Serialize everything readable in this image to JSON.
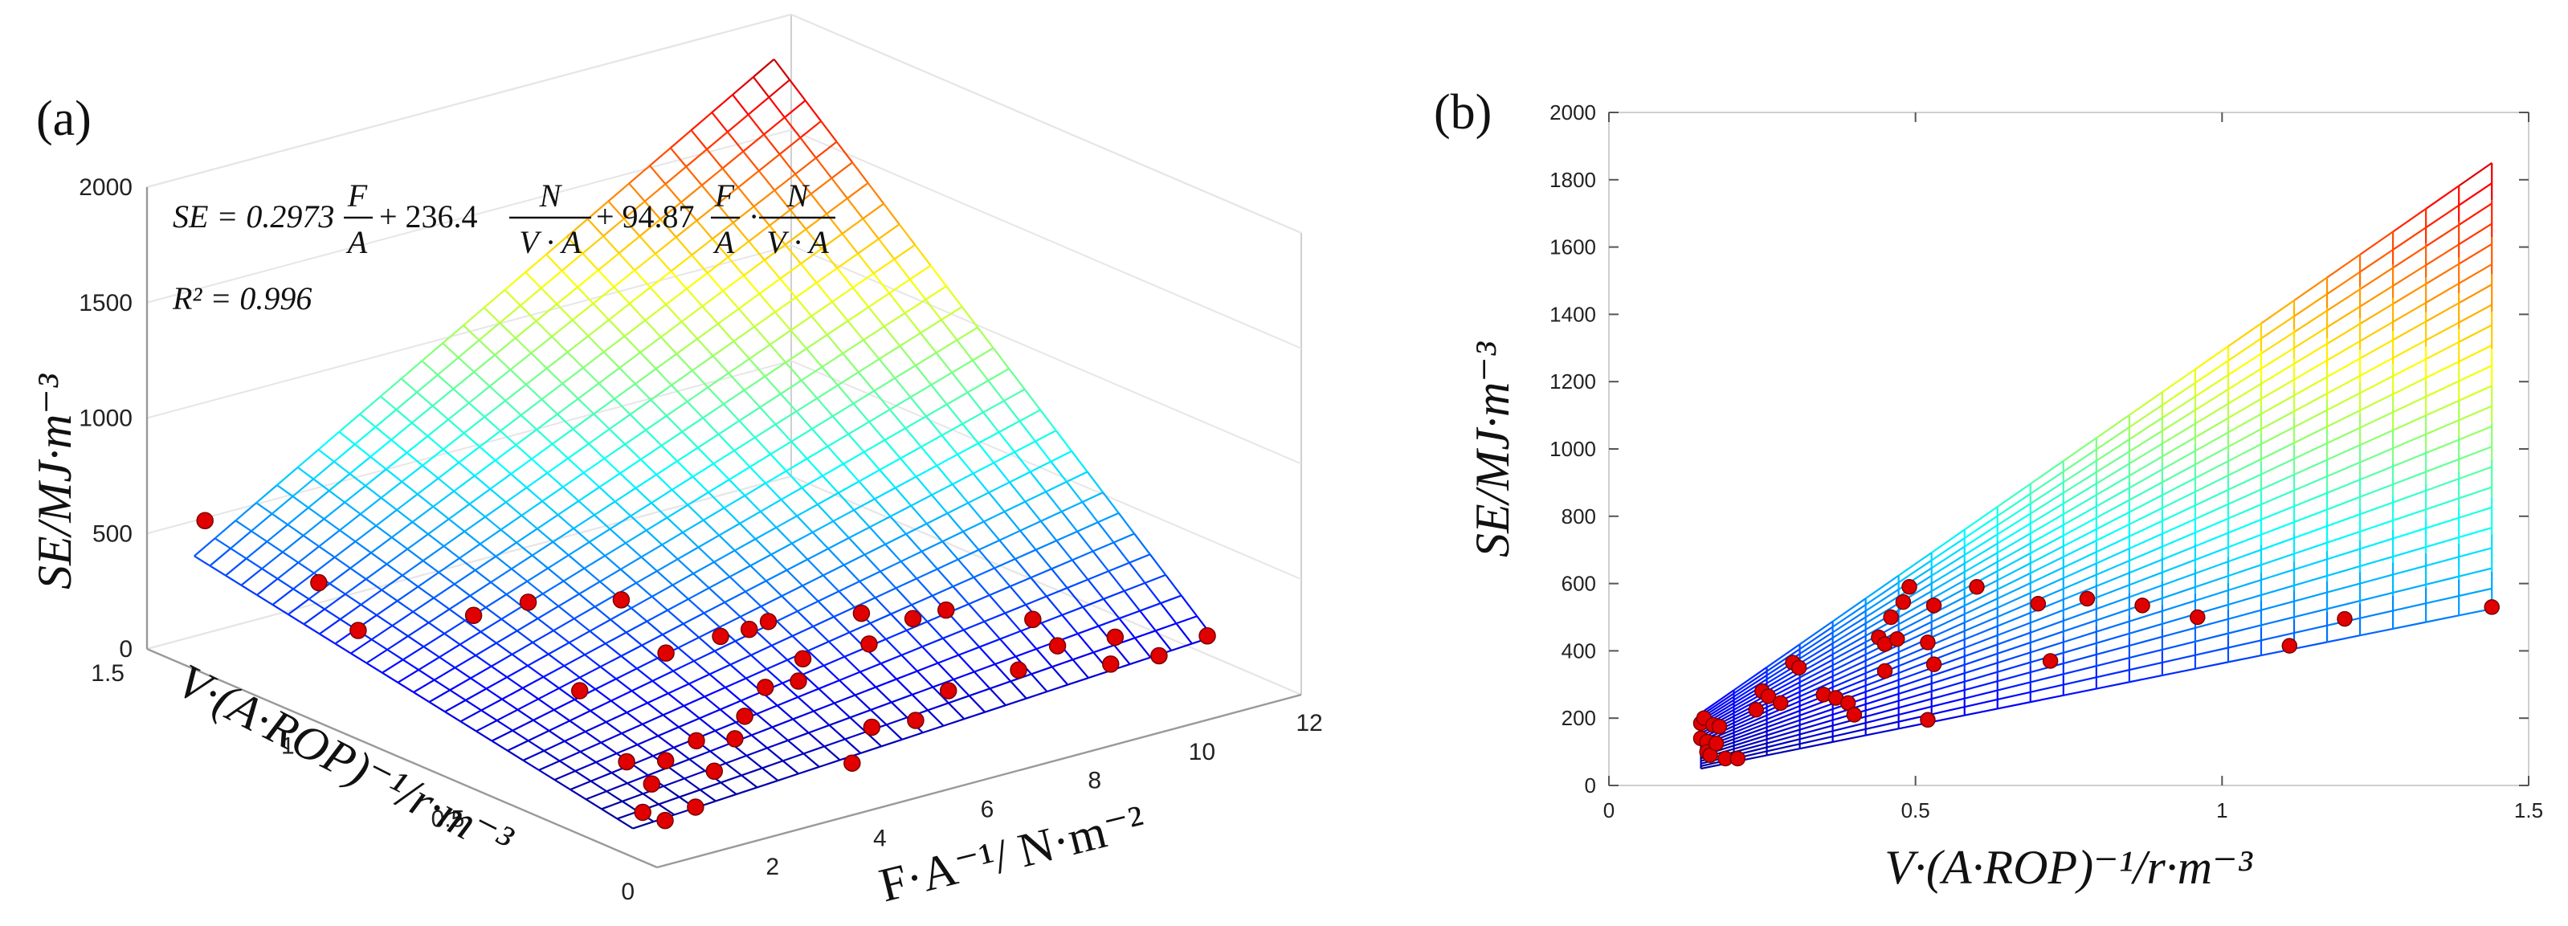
{
  "chart_data": [
    {
      "type": "surface3d",
      "panel_label": "(a)",
      "zlabel": "SE/MJ·m⁻³",
      "xlabel": "F·A⁻¹/ N·m⁻²",
      "ylabel": "V·(A·ROP)⁻¹/r·m⁻³",
      "x_ticks": [
        "2",
        "4",
        "6",
        "8",
        "10",
        "12"
      ],
      "y_ticks": [
        "0",
        "0.5",
        "1",
        "1.5"
      ],
      "z_ticks": [
        "0",
        "500",
        "1000",
        "1500",
        "2000"
      ],
      "xlim": [
        0,
        12
      ],
      "ylim": [
        0,
        1.5
      ],
      "zlim": [
        0,
        2000
      ],
      "equation": {
        "lhs": "SE = 0.2973",
        "frac1_num": "F",
        "frac1_den": "A",
        "plus1": "+ 236.4",
        "frac2_num": "N",
        "frac2_den": "V · A",
        "plus2": "+ 94.87",
        "frac3_num": "F",
        "frac3_den": "A",
        "dot": "·",
        "frac4_num": "N",
        "frac4_den": "V · A"
      },
      "r2_label": "R² = 0.996",
      "surface": {
        "x_range": [
          0.5,
          11.3
        ],
        "y_range": [
          0.15,
          1.44
        ],
        "x_lines": 28,
        "y_lines": 28,
        "model_coeffs": [
          0.2973,
          236.4,
          94.87
        ]
      },
      "points": [
        {
          "x": 0.7,
          "y": 1.44,
          "z": 550
        },
        {
          "x": 1.3,
          "y": 1.2,
          "z": 395
        },
        {
          "x": 1.4,
          "y": 1.1,
          "z": 245
        },
        {
          "x": 2.6,
          "y": 0.95,
          "z": 330
        },
        {
          "x": 3.5,
          "y": 0.78,
          "z": 55
        },
        {
          "x": 3.3,
          "y": 0.9,
          "z": 375
        },
        {
          "x": 4.4,
          "y": 0.8,
          "z": 380
        },
        {
          "x": 5.2,
          "y": 0.55,
          "z": 360
        },
        {
          "x": 2.6,
          "y": 0.5,
          "z": -20
        },
        {
          "x": 1.0,
          "y": 0.2,
          "z": 50
        },
        {
          "x": 1.1,
          "y": 0.15,
          "z": 40
        },
        {
          "x": 1.8,
          "y": 0.3,
          "z": 60
        },
        {
          "x": 3.2,
          "y": 0.48,
          "z": -40
        },
        {
          "x": 3.9,
          "y": 0.5,
          "z": -10
        },
        {
          "x": 4.3,
          "y": 0.45,
          "z": 5
        },
        {
          "x": 4.8,
          "y": 0.5,
          "z": 40
        },
        {
          "x": 5.5,
          "y": 0.55,
          "z": 90
        },
        {
          "x": 5.8,
          "y": 0.5,
          "z": 130
        },
        {
          "x": 6.2,
          "y": 0.55,
          "z": 170
        },
        {
          "x": 6.8,
          "y": 0.45,
          "z": 260
        },
        {
          "x": 7.1,
          "y": 0.52,
          "z": 330
        },
        {
          "x": 7.3,
          "y": 0.4,
          "z": 370
        },
        {
          "x": 7.6,
          "y": 0.35,
          "z": 420
        },
        {
          "x": 5.9,
          "y": 0.3,
          "z": 50
        },
        {
          "x": 4.9,
          "y": 0.2,
          "z": 20
        },
        {
          "x": 6.4,
          "y": 0.25,
          "z": 80
        },
        {
          "x": 7.2,
          "y": 0.28,
          "z": 140
        },
        {
          "x": 8.0,
          "y": 0.2,
          "z": 230
        },
        {
          "x": 8.6,
          "y": 0.18,
          "z": 310
        },
        {
          "x": 9.4,
          "y": 0.15,
          "z": 200
        },
        {
          "x": 10.3,
          "y": 0.15,
          "z": 180
        },
        {
          "x": 11.2,
          "y": 0.15,
          "z": 210
        },
        {
          "x": 4.6,
          "y": 0.7,
          "z": 200
        },
        {
          "x": 5.3,
          "y": 0.65,
          "z": 260
        },
        {
          "x": 6.0,
          "y": 0.62,
          "z": 300
        },
        {
          "x": 3.6,
          "y": 0.4,
          "z": -60
        },
        {
          "x": 2.3,
          "y": 0.25,
          "z": -40
        },
        {
          "x": 8.9,
          "y": 0.3,
          "z": 330
        },
        {
          "x": 9.8,
          "y": 0.2,
          "z": 260
        }
      ]
    },
    {
      "type": "scatter+surface-side",
      "panel_label": "(b)",
      "xlabel": "V·(A·ROP)⁻¹/r·m⁻³",
      "ylabel": "SE/MJ·m⁻³",
      "xlim": [
        0,
        1.5
      ],
      "ylim": [
        0,
        2000
      ],
      "x_ticks": [
        0,
        0.5,
        1,
        1.5
      ],
      "x_tick_labels": [
        "0",
        "0.5",
        "1",
        "1.5"
      ],
      "y_ticks": [
        0,
        200,
        400,
        600,
        800,
        1000,
        1200,
        1400,
        1600,
        1800,
        2000
      ],
      "y_tick_labels": [
        "0",
        "200",
        "400",
        "600",
        "800",
        "1000",
        "1200",
        "1400",
        "1600",
        "1800",
        "2000"
      ],
      "surface_fan": {
        "x_range": [
          0.15,
          1.44
        ],
        "upper_end": [
          1.44,
          1850
        ],
        "lower_end": [
          1.44,
          525
        ],
        "upper_start": [
          0.15,
          215
        ],
        "lower_start": [
          0.15,
          50
        ],
        "lines": 22
      },
      "points": [
        {
          "x": 0.15,
          "y": 140
        },
        {
          "x": 0.15,
          "y": 185
        },
        {
          "x": 0.155,
          "y": 200
        },
        {
          "x": 0.16,
          "y": 130
        },
        {
          "x": 0.16,
          "y": 100
        },
        {
          "x": 0.165,
          "y": 90
        },
        {
          "x": 0.17,
          "y": 180
        },
        {
          "x": 0.175,
          "y": 125
        },
        {
          "x": 0.18,
          "y": 175
        },
        {
          "x": 0.19,
          "y": 80
        },
        {
          "x": 0.21,
          "y": 80
        },
        {
          "x": 0.24,
          "y": 225
        },
        {
          "x": 0.25,
          "y": 280
        },
        {
          "x": 0.26,
          "y": 265
        },
        {
          "x": 0.28,
          "y": 245
        },
        {
          "x": 0.3,
          "y": 365
        },
        {
          "x": 0.31,
          "y": 350
        },
        {
          "x": 0.35,
          "y": 270
        },
        {
          "x": 0.37,
          "y": 260
        },
        {
          "x": 0.39,
          "y": 245
        },
        {
          "x": 0.4,
          "y": 210
        },
        {
          "x": 0.44,
          "y": 440
        },
        {
          "x": 0.45,
          "y": 420
        },
        {
          "x": 0.45,
          "y": 340
        },
        {
          "x": 0.46,
          "y": 500
        },
        {
          "x": 0.47,
          "y": 435
        },
        {
          "x": 0.48,
          "y": 545
        },
        {
          "x": 0.49,
          "y": 590
        },
        {
          "x": 0.52,
          "y": 425
        },
        {
          "x": 0.52,
          "y": 195
        },
        {
          "x": 0.53,
          "y": 535
        },
        {
          "x": 0.53,
          "y": 360
        },
        {
          "x": 0.6,
          "y": 590
        },
        {
          "x": 0.7,
          "y": 540
        },
        {
          "x": 0.72,
          "y": 370
        },
        {
          "x": 0.78,
          "y": 555
        },
        {
          "x": 0.87,
          "y": 535
        },
        {
          "x": 0.96,
          "y": 500
        },
        {
          "x": 1.11,
          "y": 415
        },
        {
          "x": 1.2,
          "y": 495
        },
        {
          "x": 1.44,
          "y": 530
        }
      ]
    }
  ]
}
